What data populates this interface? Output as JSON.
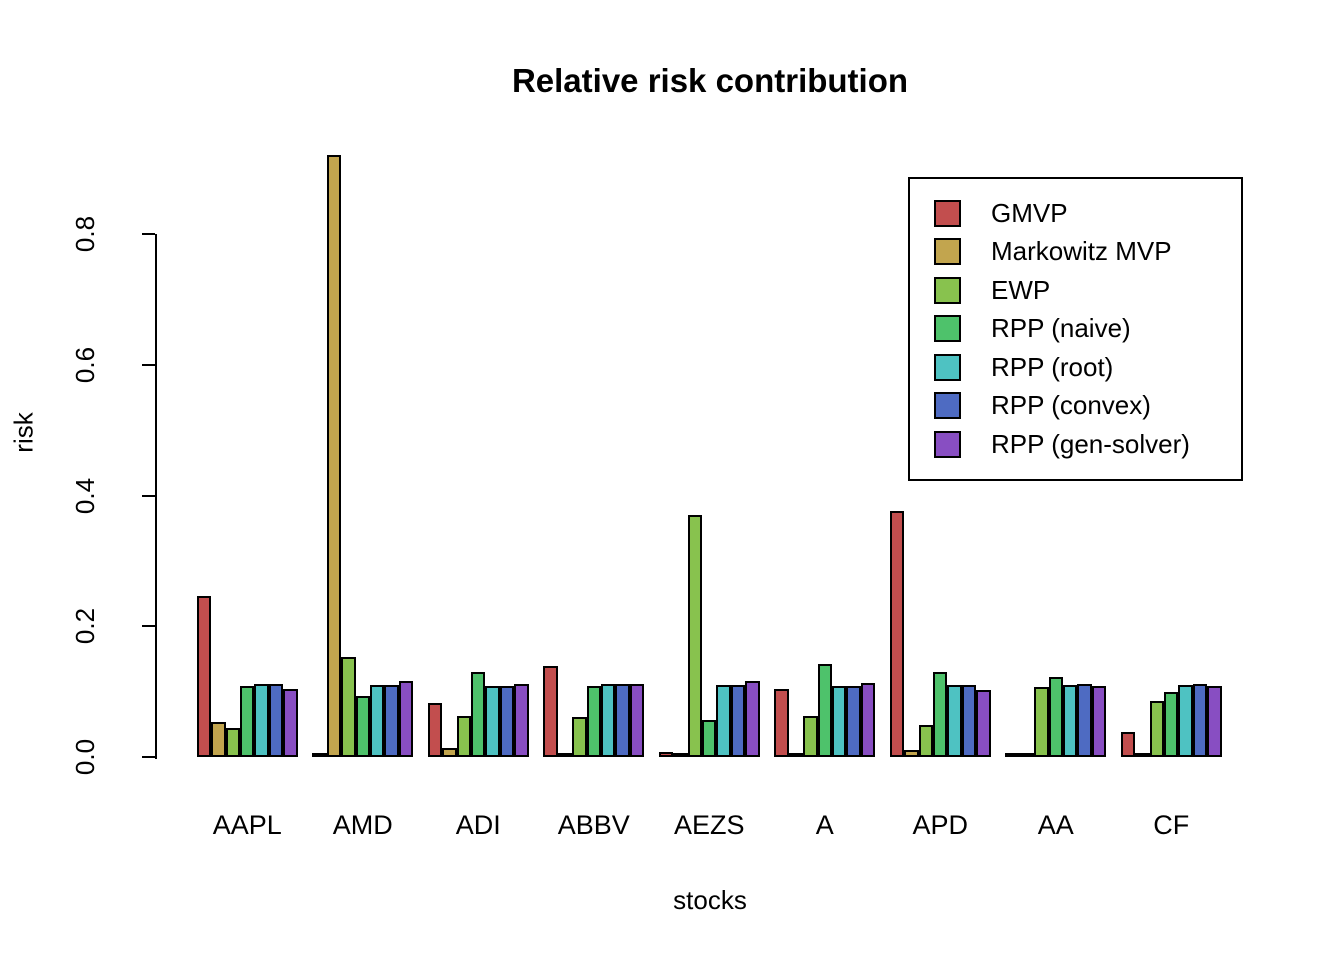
{
  "chart_data": {
    "type": "bar",
    "title": "Relative risk contribution",
    "xlabel": "stocks",
    "ylabel": "risk",
    "categories": [
      "AAPL",
      "AMD",
      "ADI",
      "ABBV",
      "AEZS",
      "A",
      "APD",
      "AA",
      "CF"
    ],
    "ytick_labels": [
      "0.0",
      "0.2",
      "0.4",
      "0.6",
      "0.8"
    ],
    "ytick_values": [
      0.0,
      0.2,
      0.4,
      0.6,
      0.8
    ],
    "ylim": [
      0,
      0.95
    ],
    "grid": false,
    "legend_position": "top-right",
    "bar_border_color": "#000000",
    "series": [
      {
        "name": "GMVP",
        "color": "#C24E4E",
        "values": [
          0.247,
          0.001,
          0.083,
          0.14,
          0.008,
          0.104,
          0.376,
          0.001,
          0.039
        ]
      },
      {
        "name": "Markowitz MVP",
        "color": "#C2A54E",
        "values": [
          0.053,
          0.921,
          0.014,
          0.001,
          0.0,
          0.001,
          0.01,
          0.001,
          0.0
        ]
      },
      {
        "name": "EWP",
        "color": "#88C24E",
        "values": [
          0.045,
          0.153,
          0.062,
          0.061,
          0.371,
          0.062,
          0.049,
          0.107,
          0.086
        ]
      },
      {
        "name": "RPP (naive)",
        "color": "#4EC26B",
        "values": [
          0.109,
          0.093,
          0.13,
          0.108,
          0.057,
          0.143,
          0.13,
          0.123,
          0.1
        ]
      },
      {
        "name": "RPP (root)",
        "color": "#4EC2C2",
        "values": [
          0.111,
          0.11,
          0.109,
          0.111,
          0.11,
          0.109,
          0.11,
          0.11,
          0.11
        ]
      },
      {
        "name": "RPP (convex)",
        "color": "#4E6BC2",
        "values": [
          0.111,
          0.11,
          0.109,
          0.111,
          0.11,
          0.109,
          0.11,
          0.111,
          0.111
        ]
      },
      {
        "name": "RPP (gen-solver)",
        "color": "#884EC2",
        "values": [
          0.104,
          0.116,
          0.112,
          0.112,
          0.116,
          0.114,
          0.103,
          0.108,
          0.109
        ]
      }
    ]
  }
}
